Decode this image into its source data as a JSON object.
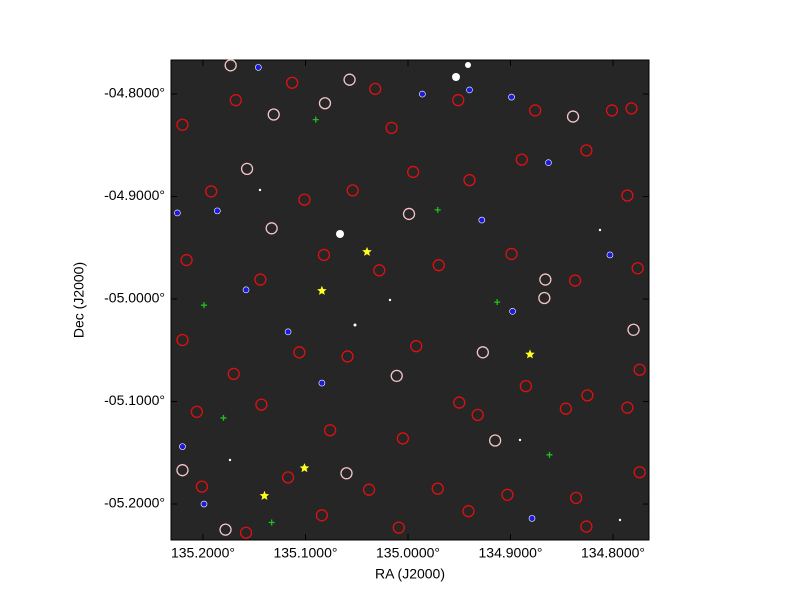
{
  "chart_data": {
    "type": "scatter",
    "xlabel": "RA (J2000)",
    "ylabel": "Dec (J2000)",
    "xlim": [
      135.2312,
      134.7649
    ],
    "ylim": [
      -5.2351,
      -4.7668
    ],
    "xticks": [
      {
        "value": 135.2,
        "label": "135.2000°"
      },
      {
        "value": 135.1,
        "label": "135.1000°"
      },
      {
        "value": 135.0,
        "label": "135.0000°"
      },
      {
        "value": 134.9,
        "label": "134.9000°"
      },
      {
        "value": 134.8,
        "label": "134.8000°"
      }
    ],
    "yticks": [
      {
        "value": -4.8,
        "label": "-04.8000°"
      },
      {
        "value": -4.9,
        "label": "-04.9000°"
      },
      {
        "value": -5.0,
        "label": "-05.0000°"
      },
      {
        "value": -5.1,
        "label": "-05.1000°"
      },
      {
        "value": -5.2,
        "label": "-05.2000°"
      }
    ],
    "series": [
      {
        "color": "#e01010",
        "marker": "ring",
        "x": [
          135.22,
          135.168,
          135.113,
          135.032,
          135.016,
          134.951,
          134.876,
          134.801,
          134.782,
          135.192,
          135.101,
          135.054,
          134.995,
          134.94,
          134.889,
          134.826,
          134.786,
          135.216,
          135.144,
          135.082,
          135.028,
          134.97,
          134.899,
          134.837,
          134.776,
          135.22,
          135.17,
          135.106,
          135.059,
          134.992,
          134.95,
          134.885,
          134.825,
          134.774,
          135.206,
          135.143,
          135.076,
          135.005,
          134.932,
          134.846,
          134.786,
          135.201,
          135.117,
          135.038,
          134.971,
          134.903,
          134.836,
          134.774,
          135.158,
          135.084,
          135.009,
          134.941,
          134.826
        ],
        "y": [
          -4.83,
          -4.806,
          -4.789,
          -4.795,
          -4.833,
          -4.806,
          -4.816,
          -4.816,
          -4.814,
          -4.895,
          -4.903,
          -4.894,
          -4.876,
          -4.884,
          -4.864,
          -4.855,
          -4.899,
          -4.962,
          -4.981,
          -4.957,
          -4.972,
          -4.967,
          -4.956,
          -4.982,
          -4.97,
          -5.04,
          -5.073,
          -5.052,
          -5.056,
          -5.046,
          -5.101,
          -5.085,
          -5.094,
          -5.069,
          -5.11,
          -5.103,
          -5.128,
          -5.136,
          -5.113,
          -5.107,
          -5.106,
          -5.183,
          -5.174,
          -5.186,
          -5.185,
          -5.191,
          -5.194,
          -5.169,
          -5.228,
          -5.211,
          -5.223,
          -5.207,
          -5.222
        ]
      },
      {
        "color": "#f4c4c8",
        "marker": "ring",
        "x": [
          135.173,
          135.057,
          135.081,
          135.131,
          135.157,
          134.839,
          134.999,
          135.133,
          134.866,
          134.927,
          134.915,
          135.22,
          135.178,
          135.06,
          134.78,
          134.867,
          135.011
        ],
        "y": [
          -4.772,
          -4.786,
          -4.809,
          -4.82,
          -4.873,
          -4.822,
          -4.917,
          -4.931,
          -4.981,
          -5.052,
          -5.138,
          -5.167,
          -5.225,
          -5.17,
          -5.03,
          -4.999,
          -5.075
        ]
      },
      {
        "color": "#1a1ae0",
        "marker": "dot",
        "x": [
          135.225,
          135.186,
          135.146,
          134.986,
          134.899,
          134.863,
          134.928,
          135.158,
          135.117,
          135.084,
          134.898,
          135.22,
          134.879,
          135.199,
          134.803,
          134.94
        ],
        "y": [
          -4.916,
          -4.914,
          -4.774,
          -4.8,
          -4.803,
          -4.867,
          -4.923,
          -4.991,
          -5.032,
          -5.082,
          -5.012,
          -5.144,
          -5.214,
          -5.2,
          -4.957,
          -4.796
        ]
      },
      {
        "color": "#20c020",
        "marker": "plus",
        "x": [
          135.09,
          135.199,
          135.18,
          135.133,
          134.862,
          134.913,
          134.971
        ],
        "y": [
          -4.825,
          -5.006,
          -5.116,
          -5.218,
          -5.152,
          -5.003,
          -4.913
        ]
      },
      {
        "color": "#ffff20",
        "marker": "star",
        "x": [
          135.04,
          135.084,
          134.881,
          135.101,
          135.14
        ],
        "y": [
          -4.954,
          -4.992,
          -5.054,
          -5.165,
          -5.192
        ]
      }
    ]
  }
}
